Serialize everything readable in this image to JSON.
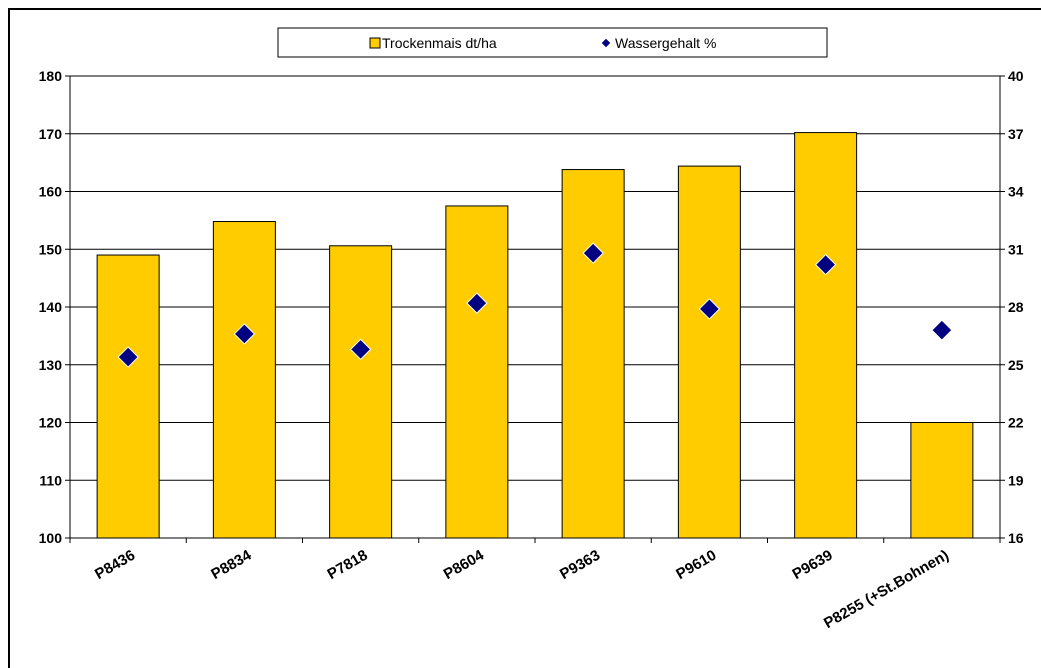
{
  "chart_data": {
    "type": "bar",
    "categories": [
      "P8436",
      "P8834",
      "P7818",
      "P8604",
      "P9363",
      "P9610",
      "P9639",
      "P8255 (+St.Bohnen)"
    ],
    "series": [
      {
        "name": "Trockenmais dt/ha",
        "kind": "bar",
        "axis": "left",
        "color": "#FFCC00",
        "values": [
          149,
          154.8,
          150.6,
          157.5,
          163.8,
          164.4,
          170.2,
          120
        ]
      },
      {
        "name": "Wassergehalt %",
        "kind": "marker-diamond",
        "axis": "right",
        "color": "#000080",
        "values": [
          25.4,
          26.6,
          25.8,
          28.2,
          30.8,
          27.9,
          30.2,
          26.8
        ]
      }
    ],
    "y_left": {
      "range": [
        100,
        180
      ],
      "ticks": [
        "100",
        "110",
        "120",
        "130",
        "140",
        "150",
        "160",
        "170",
        "180"
      ]
    },
    "y_right": {
      "range": [
        16,
        40
      ],
      "ticks": [
        "16",
        "19",
        "22",
        "25",
        "28",
        "31",
        "34",
        "37",
        "40"
      ]
    },
    "grid": "horizontal",
    "legend": "top-center"
  }
}
